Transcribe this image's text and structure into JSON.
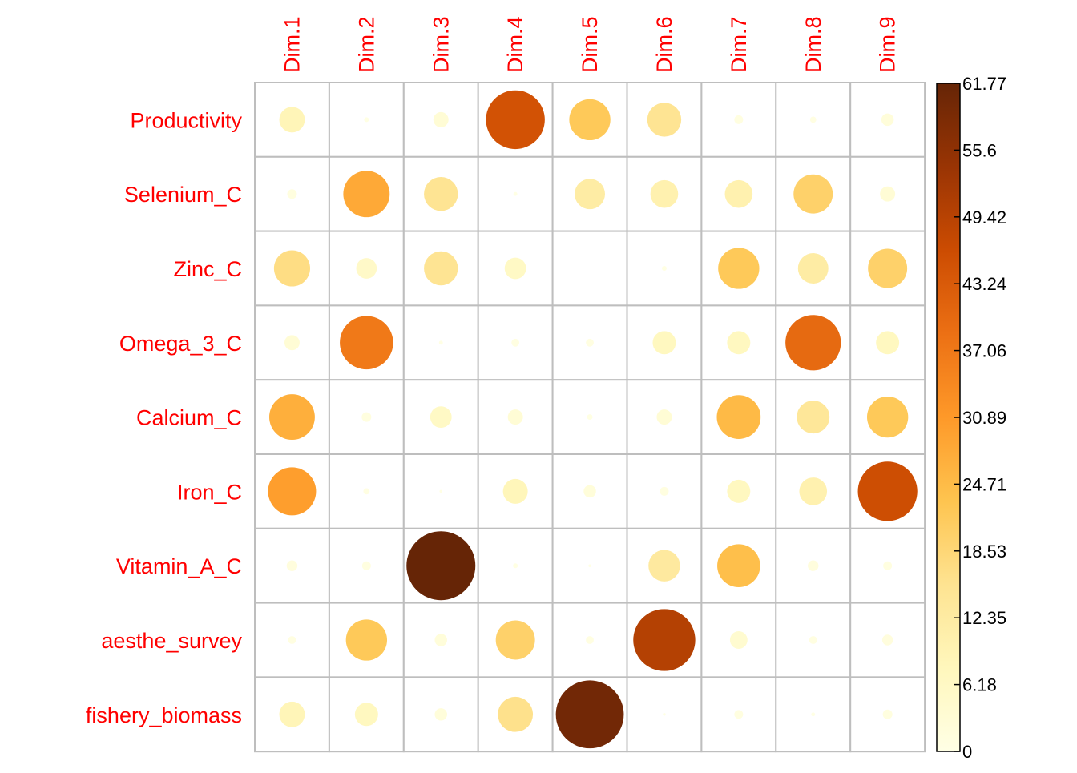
{
  "chart_data": {
    "type": "heatmap",
    "marker": "circle",
    "columns": [
      "Dim.1",
      "Dim.2",
      "Dim.3",
      "Dim.4",
      "Dim.5",
      "Dim.6",
      "Dim.7",
      "Dim.8",
      "Dim.9"
    ],
    "rows": [
      "Productivity",
      "Selenium_C",
      "Zinc_C",
      "Omega_3_C",
      "Calcium_C",
      "Iron_C",
      "Vitamin_A_C",
      "aesthe_survey",
      "fishery_biomass"
    ],
    "values": [
      [
        8.5,
        0.3,
        3.0,
        45.0,
        22.0,
        15.0,
        1.0,
        0.5,
        2.0
      ],
      [
        1.2,
        28.0,
        15.0,
        0.2,
        12.0,
        10.0,
        10.0,
        20.0,
        3.0
      ],
      [
        17.0,
        5.5,
        15.0,
        6.0,
        0.0,
        0.3,
        22.0,
        12.0,
        20.0
      ],
      [
        3.0,
        37.0,
        0.2,
        0.8,
        0.8,
        7.0,
        7.0,
        40.0,
        7.0
      ],
      [
        27.0,
        1.2,
        6.0,
        3.0,
        0.4,
        3.0,
        25.0,
        14.0,
        22.0
      ],
      [
        30.0,
        0.5,
        0.1,
        8.0,
        2.0,
        1.0,
        7.0,
        10.0,
        46.0
      ],
      [
        1.5,
        1.0,
        61.77,
        0.3,
        0.1,
        13.0,
        24.0,
        1.5,
        1.0
      ],
      [
        0.8,
        22.0,
        2.0,
        20.0,
        0.8,
        50.0,
        4.0,
        0.8,
        1.5
      ],
      [
        8.5,
        7.0,
        2.0,
        16.0,
        60.0,
        0.1,
        1.0,
        0.2,
        1.2
      ]
    ],
    "value_range": [
      0,
      61.77
    ],
    "colorbar": {
      "ticks": [
        "0",
        "6.18",
        "12.35",
        "18.53",
        "24.71",
        "30.89",
        "37.06",
        "43.24",
        "49.42",
        "55.6",
        "61.77"
      ],
      "colors": [
        "#FFFFE5",
        "#FFF7BC",
        "#FEE391",
        "#FEC44F",
        "#FE9929",
        "#EC7014",
        "#CC4C02",
        "#993404",
        "#662506"
      ]
    },
    "label_color": "#FF0000",
    "grid": true,
    "legend_position": "right"
  }
}
